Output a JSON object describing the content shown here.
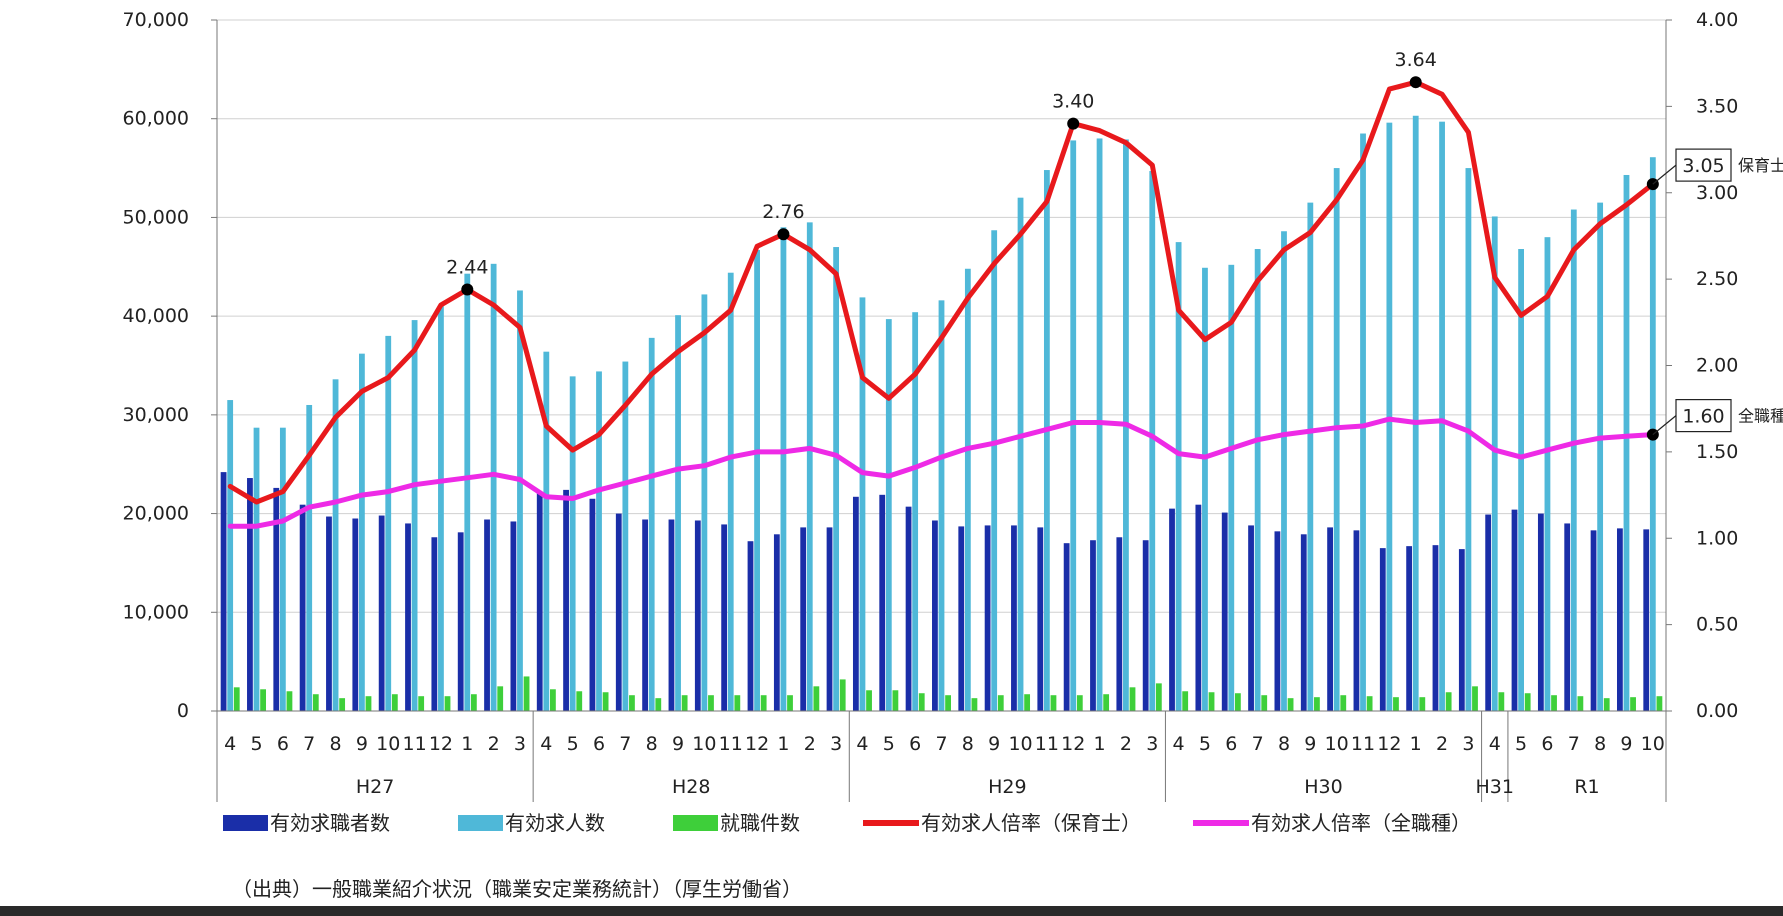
{
  "chart_data": {
    "type": "bar",
    "months": [
      "4",
      "5",
      "6",
      "7",
      "8",
      "9",
      "10",
      "11",
      "12",
      "1",
      "2",
      "3",
      "4",
      "5",
      "6",
      "7",
      "8",
      "9",
      "10",
      "11",
      "12",
      "1",
      "2",
      "3",
      "4",
      "5",
      "6",
      "7",
      "8",
      "9",
      "10",
      "11",
      "12",
      "1",
      "2",
      "3",
      "4",
      "5",
      "6",
      "7",
      "8",
      "9",
      "10",
      "11",
      "12",
      "1",
      "2",
      "3",
      "4",
      "5",
      "6",
      "7",
      "8",
      "9",
      "10"
    ],
    "years": [
      {
        "label": "H27",
        "count": 12
      },
      {
        "label": "H28",
        "count": 12
      },
      {
        "label": "H29",
        "count": 12
      },
      {
        "label": "H30",
        "count": 12
      },
      {
        "label": "H31",
        "count": 1
      },
      {
        "label": "R1",
        "count": 6
      }
    ],
    "y_left": {
      "ylim": [
        0,
        70000
      ],
      "ticks": [
        "0",
        "10,000",
        "20,000",
        "30,000",
        "40,000",
        "50,000",
        "60,000",
        "70,000"
      ]
    },
    "y_right": {
      "ylim": [
        0,
        4.0
      ],
      "ticks": [
        "0.00",
        "0.50",
        "1.00",
        "1.50",
        "2.00",
        "2.50",
        "3.00",
        "3.50",
        "4.00"
      ]
    },
    "series": [
      {
        "name": "有効求職者数",
        "kind": "bar",
        "axis": "left",
        "color": "#1a2ea8",
        "values": [
          24200,
          23600,
          22600,
          20900,
          19700,
          19500,
          19800,
          19000,
          17600,
          18100,
          19400,
          19200,
          22100,
          22400,
          21500,
          20000,
          19400,
          19400,
          19300,
          18900,
          17200,
          17900,
          18600,
          18600,
          21700,
          21900,
          20700,
          19300,
          18700,
          18800,
          18800,
          18600,
          17000,
          17300,
          17600,
          17300,
          20500,
          20900,
          20100,
          18800,
          18200,
          17900,
          18600,
          18300,
          16500,
          16700,
          16800,
          16400,
          19900,
          20400,
          20000,
          19000,
          18300,
          18500,
          18400
        ]
      },
      {
        "name": "有効求人数",
        "kind": "bar",
        "axis": "left",
        "color": "#4fb8d8",
        "values": [
          31500,
          28700,
          28700,
          31000,
          33600,
          36200,
          38000,
          39600,
          41000,
          44300,
          45300,
          42600,
          36400,
          33900,
          34400,
          35400,
          37800,
          40100,
          42200,
          44400,
          46700,
          49000,
          49500,
          47000,
          41900,
          39700,
          40400,
          41600,
          44800,
          48700,
          52000,
          54800,
          57800,
          58000,
          57900,
          54700,
          47500,
          44900,
          45200,
          46800,
          48600,
          51500,
          55000,
          58500,
          59600,
          60300,
          59700,
          55000,
          50100,
          46800,
          48000,
          50800,
          51500,
          54300,
          56100
        ]
      },
      {
        "name": "就職件数",
        "kind": "bar",
        "axis": "left",
        "color": "#3ecf3a",
        "values": [
          2400,
          2200,
          2000,
          1700,
          1300,
          1500,
          1700,
          1500,
          1500,
          1700,
          2500,
          3500,
          2200,
          2000,
          1900,
          1600,
          1300,
          1600,
          1600,
          1600,
          1600,
          1600,
          2500,
          3200,
          2100,
          2100,
          1800,
          1600,
          1300,
          1600,
          1700,
          1600,
          1600,
          1700,
          2400,
          2800,
          2000,
          1900,
          1800,
          1600,
          1300,
          1400,
          1600,
          1500,
          1400,
          1400,
          1900,
          2500,
          1900,
          1800,
          1600,
          1500,
          1300,
          1400,
          1500
        ]
      },
      {
        "name": "有効求人倍率（保育士）",
        "kind": "line",
        "axis": "right",
        "color": "#e8191c",
        "values": [
          1.3,
          1.21,
          1.27,
          1.48,
          1.7,
          1.85,
          1.93,
          2.09,
          2.35,
          2.44,
          2.35,
          2.22,
          1.65,
          1.51,
          1.6,
          1.77,
          1.95,
          2.08,
          2.19,
          2.32,
          2.69,
          2.76,
          2.67,
          2.53,
          1.93,
          1.81,
          1.95,
          2.16,
          2.39,
          2.59,
          2.76,
          2.95,
          3.4,
          3.36,
          3.29,
          3.16,
          2.32,
          2.15,
          2.25,
          2.49,
          2.67,
          2.77,
          2.96,
          3.19,
          3.6,
          3.64,
          3.57,
          3.35,
          2.51,
          2.29,
          2.4,
          2.67,
          2.82,
          2.93,
          3.05
        ]
      },
      {
        "name": "有効求人倍率（全職種）",
        "kind": "line",
        "axis": "right",
        "color": "#ee2ae6",
        "values": [
          1.07,
          1.07,
          1.1,
          1.18,
          1.21,
          1.25,
          1.27,
          1.31,
          1.33,
          1.35,
          1.37,
          1.34,
          1.24,
          1.23,
          1.28,
          1.32,
          1.36,
          1.4,
          1.42,
          1.47,
          1.5,
          1.5,
          1.52,
          1.48,
          1.38,
          1.36,
          1.41,
          1.47,
          1.52,
          1.55,
          1.59,
          1.63,
          1.67,
          1.67,
          1.66,
          1.59,
          1.49,
          1.47,
          1.52,
          1.57,
          1.6,
          1.62,
          1.64,
          1.65,
          1.69,
          1.67,
          1.68,
          1.62,
          1.51,
          1.47,
          1.51,
          1.55,
          1.58,
          1.59,
          1.6
        ]
      }
    ],
    "annotations": [
      {
        "series": 3,
        "index": 9,
        "text": "2.44"
      },
      {
        "series": 3,
        "index": 21,
        "text": "2.76"
      },
      {
        "series": 3,
        "index": 32,
        "text": "3.40"
      },
      {
        "series": 3,
        "index": 45,
        "text": "3.64"
      }
    ],
    "end_labels": [
      {
        "series": 3,
        "value_text": "3.05",
        "name_text": "保育士"
      },
      {
        "series": 4,
        "value_text": "1.60",
        "name_text": "全職種"
      }
    ],
    "source": "（出典）一般職業紹介状況（職業安定業務統計）（厚生労働省）"
  }
}
